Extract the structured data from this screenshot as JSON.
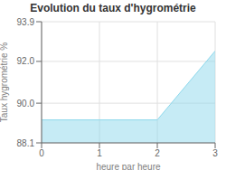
{
  "chart_data": {
    "type": "area",
    "title": "Evolution du taux d'hygrométrie",
    "xlabel": "heure par heure",
    "ylabel": "Taux hygrométrie %",
    "x": [
      0,
      1,
      2,
      3
    ],
    "values": [
      89.2,
      89.2,
      89.2,
      92.5
    ],
    "color": "#8ed8ec",
    "xlim": [
      0,
      3
    ],
    "ylim": [
      88.1,
      93.9
    ],
    "xticks": [
      0,
      1,
      2,
      3
    ],
    "yticks": [
      88.1,
      {
        "value": 90,
        "label": "90.0"
      },
      {
        "value": 92,
        "label": "92.0"
      },
      93.9
    ],
    "grid": true
  }
}
